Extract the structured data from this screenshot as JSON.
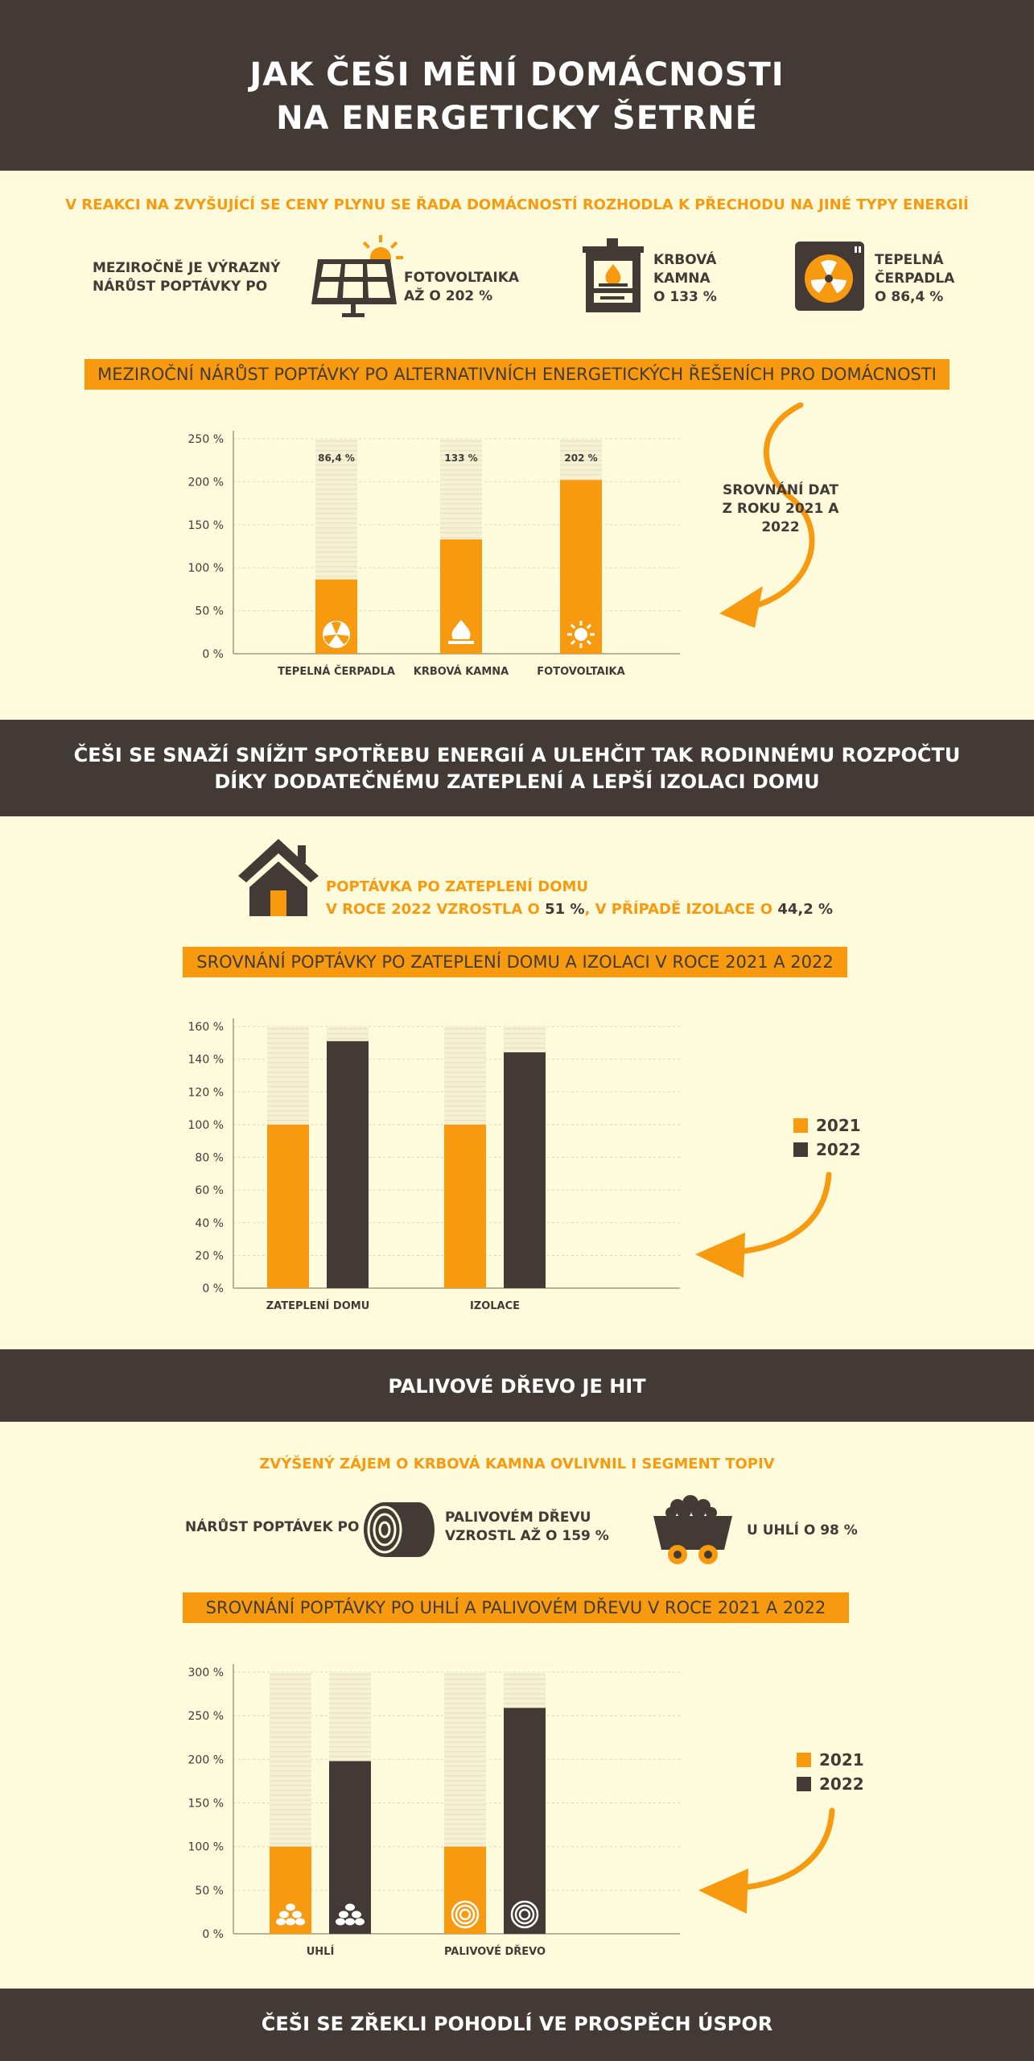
{
  "header": {
    "title_line1": "JAK ČEŠI MĚNÍ DOMÁCNOSTI",
    "title_line2": "NA ENERGETICKY ŠETRNÉ"
  },
  "section1": {
    "intro": "V REAKCI NA ZVYŠUJÍCÍ SE CENY PLYNU SE ŘADA DOMÁCNOSTÍ ROZHODLA K PŘECHODU NA JINÉ TYPY ENERGIÍ",
    "lead_line1": "MEZIROČNĚ JE VÝRAZNÝ",
    "lead_line2": "NÁRŮST POPTÁVKY PO",
    "stat_solar_line1": "FOTOVOLTAIKA",
    "stat_solar_line2": "AŽ O 202 %",
    "stat_stove_line1": "KRBOVÁ",
    "stat_stove_line2": "KAMNA",
    "stat_stove_line3": "O 133 %",
    "stat_pump_line1": "TEPELNÁ",
    "stat_pump_line2": "ČERPADLA",
    "stat_pump_line3": "O 86,4 %",
    "bar_title": "MEZIROČNÍ NÁRŮST POPTÁVKY PO ALTERNATIVNÍCH ENERGETICKÝCH ŘEŠENÍCH PRO DOMÁCNOSTI",
    "note_line1": "SROVNÁNÍ DAT",
    "note_line2": "Z ROKU 2021 A 2022"
  },
  "section2": {
    "band_line1": "ČEŠI SE SNAŽÍ SNÍŽIT SPOTŘEBU ENERGIÍ A ULEHČIT TAK RODINNÉMU ROZPOČTU",
    "band_line2": "DÍKY DODATEČNÉMU ZATEPLENÍ A LEPŠÍ IZOLACI DOMU",
    "stat_line1": "POPTÁVKA PO ZATEPLENÍ DOMU",
    "stat_line2_a": "V  ROCE 2022 VZROSTLA O ",
    "stat_line2_b": "51 %",
    "stat_line2_c": ", V PŘÍPADĚ IZOLACE O ",
    "stat_line2_d": "44,2 %",
    "bar_title": "SROVNÁNÍ POPTÁVKY PO ZATEPLENÍ DOMU A IZOLACI V ROCE 2021 A 2022",
    "legend_2021": "2021",
    "legend_2022": "2022"
  },
  "section3": {
    "band": "PALIVOVÉ DŘEVO JE HIT",
    "intro": "ZVÝŠENÝ ZÁJEM O KRBOVÁ KAMNA OVLIVNIL I SEGMENT TOPIV",
    "lead": "NÁRŮST POPTÁVEK PO",
    "stat_wood_line1": "PALIVOVÉM DŘEVU",
    "stat_wood_line2": "VZROSTL AŽ O 159 %",
    "stat_coal": "U UHLÍ O 98 %",
    "bar_title": "SROVNÁNÍ POPTÁVKY PO UHLÍ A PALIVOVÉM DŘEVU V ROCE 2021 A 2022",
    "legend_2021": "2021",
    "legend_2022": "2022"
  },
  "footer": {
    "band": "ČEŠI SE ZŘEKLI POHODLÍ VE PROSPĚCH ÚSPOR"
  },
  "colors": {
    "orange": "#f79a0f",
    "dark": "#433a36",
    "background": "#fefbdc"
  },
  "chart_data": [
    {
      "type": "bar",
      "categories": [
        "TEPELNÁ ČERPADLA",
        "KRBOVÁ KAMNA",
        "FOTOVOLTAIKA"
      ],
      "values": [
        86.4,
        133,
        202
      ],
      "data_labels": [
        "86,4 %",
        "133 %",
        "202 %"
      ],
      "yticks": [
        0,
        50,
        100,
        150,
        200,
        250
      ],
      "ytick_labels": [
        "0 %",
        "50 %",
        "100 %",
        "150 %",
        "200 %",
        "250 %"
      ],
      "ylim": [
        0,
        250
      ],
      "icons": [
        "fan-icon",
        "flame-icon",
        "sun-icon"
      ]
    },
    {
      "type": "bar",
      "categories": [
        "ZATEPLENÍ DOMU",
        "IZOLACE"
      ],
      "series": [
        {
          "name": "2021",
          "values": [
            100,
            100
          ],
          "color": "#f79a0f"
        },
        {
          "name": "2022",
          "values": [
            151,
            144.2
          ],
          "color": "#433a36"
        }
      ],
      "yticks": [
        0,
        20,
        40,
        60,
        80,
        100,
        120,
        140,
        160
      ],
      "ytick_labels": [
        "0 %",
        "20 %",
        "40 %",
        "60 %",
        "80 %",
        "100 %",
        "120 %",
        "140 %",
        "160 %"
      ],
      "ylim": [
        0,
        160
      ],
      "legend": "right"
    },
    {
      "type": "bar",
      "categories": [
        "UHLÍ",
        "PALIVOVÉ DŘEVO"
      ],
      "series": [
        {
          "name": "2021",
          "values": [
            100,
            100
          ],
          "color": "#f79a0f"
        },
        {
          "name": "2022",
          "values": [
            198,
            259
          ],
          "color": "#433a36"
        }
      ],
      "yticks": [
        0,
        50,
        100,
        150,
        200,
        250,
        300
      ],
      "ytick_labels": [
        "0 %",
        "50 %",
        "100 %",
        "150 %",
        "200 %",
        "250 %",
        "300 %"
      ],
      "ylim": [
        0,
        300
      ],
      "legend": "right",
      "icons": [
        "coal-icon",
        "wood-log-icon"
      ]
    }
  ]
}
